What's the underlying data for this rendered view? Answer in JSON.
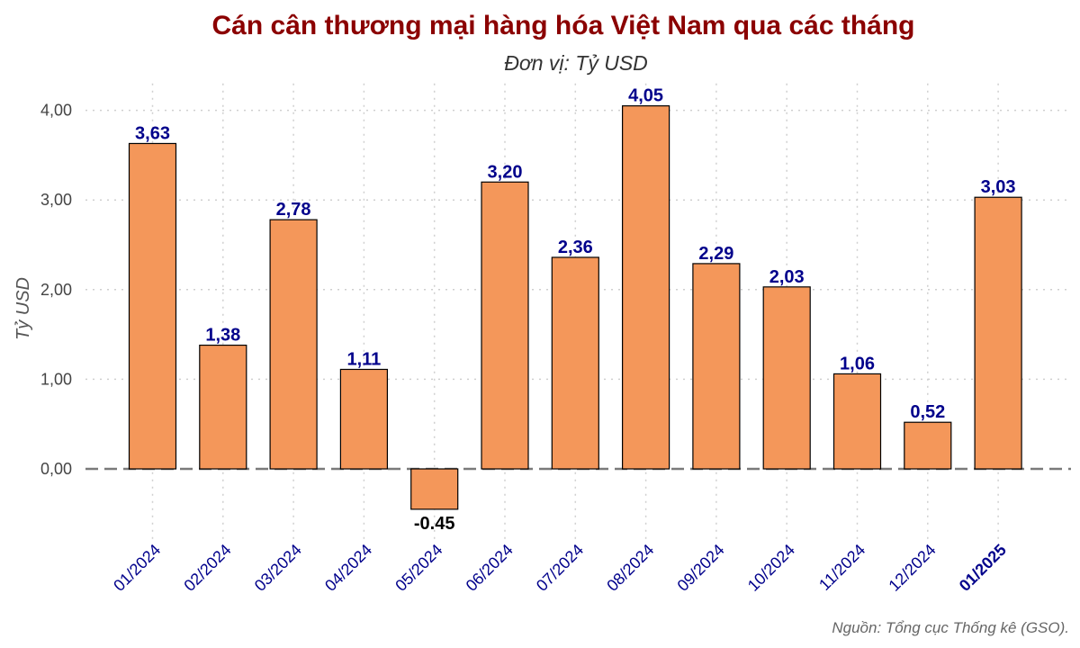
{
  "chart_data": {
    "type": "bar",
    "title": "Cán cân thương mại hàng hóa Việt Nam qua các tháng",
    "subtitle": "Đơn vị: Tỷ USD",
    "xlabel": "",
    "ylabel": "Tỷ USD",
    "source": "Nguồn: Tổng cục Thống kê (GSO).",
    "categories": [
      "01/2024",
      "02/2024",
      "03/2024",
      "04/2024",
      "05/2024",
      "06/2024",
      "07/2024",
      "08/2024",
      "09/2024",
      "10/2024",
      "11/2024",
      "12/2024",
      "01/2025"
    ],
    "values": [
      3.63,
      1.38,
      2.78,
      1.11,
      -0.45,
      3.2,
      2.36,
      4.05,
      2.29,
      2.03,
      1.06,
      0.52,
      3.03
    ],
    "value_labels": [
      "3,63",
      "1,38",
      "2,78",
      "1,11",
      "-0.45",
      "3,20",
      "2,36",
      "4,05",
      "2,29",
      "2,03",
      "1,06",
      "0,52",
      "3,03"
    ],
    "highlight_category": "01/2025",
    "yticks": [
      0,
      1,
      2,
      3,
      4
    ],
    "ytick_labels": [
      "0,00",
      "1,00",
      "2,00",
      "3,00",
      "4,00"
    ],
    "ylim": [
      -0.75,
      4.3
    ],
    "grid": true,
    "legend": "none",
    "colors": {
      "bar": "#F4975A",
      "title": "#8B0000",
      "value_label": "#00008B",
      "xtick": "#00008B",
      "zero_line": "#7a7a7a"
    }
  }
}
